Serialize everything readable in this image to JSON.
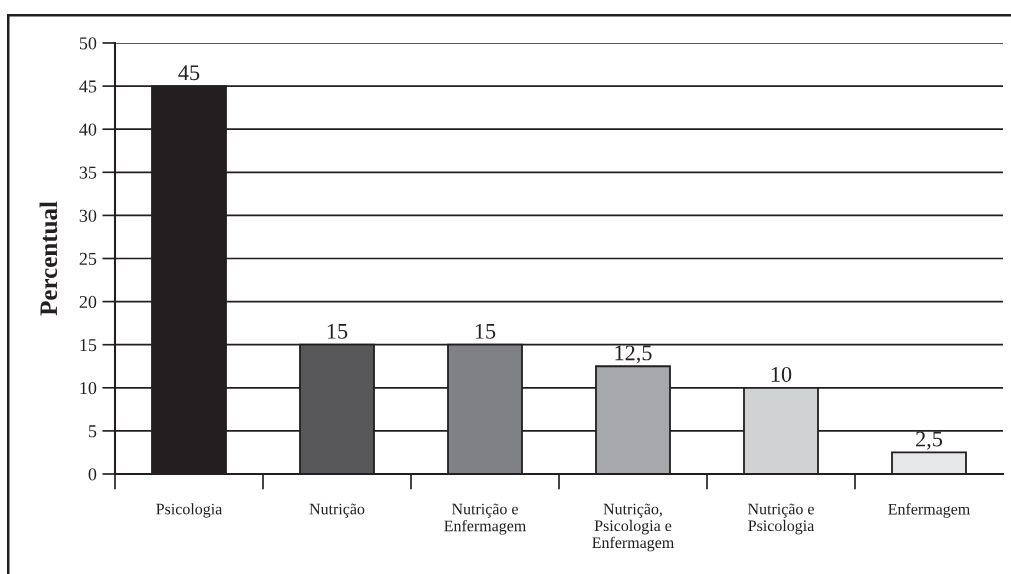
{
  "chart_data": {
    "type": "bar",
    "ylabel": "Percentual",
    "categories": [
      "Psicologia",
      "Nutrição",
      "Nutrição e\nEnfermagem",
      "Nutrição,\nPsicologia e\nEnfermagem",
      "Nutrição e\nPsicologia",
      "Enfermagem"
    ],
    "values": [
      45,
      15,
      15,
      12.5,
      10,
      2.5
    ],
    "colors": [
      "#231f20",
      "#58585a",
      "#808184",
      "#a7a8ab",
      "#d1d2d4",
      "#e6e7e8"
    ],
    "value_labels": [
      "45",
      "15",
      "15",
      "12,5",
      "10",
      "2,5"
    ],
    "ylim": [
      0,
      50
    ],
    "yticks": [
      0,
      5,
      10,
      15,
      20,
      25,
      30,
      35,
      40,
      45,
      50
    ],
    "grid": "y",
    "legend": false
  }
}
